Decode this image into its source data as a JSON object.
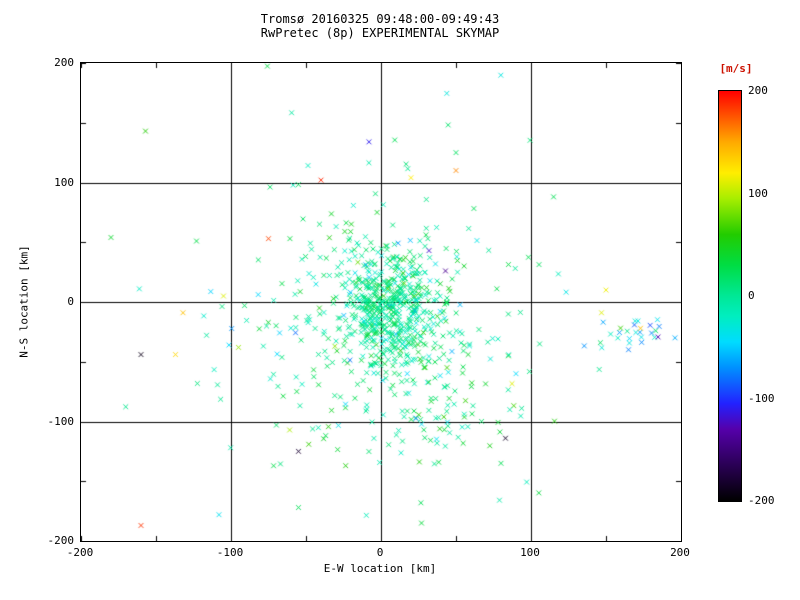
{
  "title": {
    "line1": "Tromsø 20160325 09:48:00-09:49:43",
    "line2": "RwPretec (8p) EXPERIMENTAL SKYMAP"
  },
  "axes": {
    "xlabel": "E-W location [km]",
    "ylabel": "N-S location [km]",
    "xlim": [
      -200,
      200
    ],
    "ylim": [
      -200,
      200
    ],
    "xticks": [
      "-200",
      "-100",
      "0",
      "100",
      "200"
    ],
    "yticks": [
      "200",
      "100",
      "0",
      "-100",
      "-200"
    ],
    "grid_positions": [
      -100,
      0,
      100
    ],
    "minor_tick_step": 50
  },
  "colorbar": {
    "label": "[m/s]",
    "label_color": "#cc1100",
    "min": -200,
    "max": 200,
    "ticks": [
      "200",
      "100",
      "0",
      "-100",
      "-200"
    ],
    "tick_values": [
      200,
      100,
      0,
      -100,
      -200
    ]
  },
  "colors": {
    "frame": "#000000",
    "grid": "#000000",
    "background": "#ffffff",
    "colormap_stops": [
      [
        -200,
        "#000000"
      ],
      [
        -165,
        "#2a0055"
      ],
      [
        -130,
        "#5500aa"
      ],
      [
        -105,
        "#2222ff"
      ],
      [
        -70,
        "#0090ff"
      ],
      [
        -45,
        "#00dcff"
      ],
      [
        -20,
        "#00eec0"
      ],
      [
        0,
        "#00e896"
      ],
      [
        30,
        "#00dd44"
      ],
      [
        60,
        "#22cc00"
      ],
      [
        95,
        "#a8ee00"
      ],
      [
        120,
        "#ffee00"
      ],
      [
        150,
        "#ffaa00"
      ],
      [
        175,
        "#ff5500"
      ],
      [
        200,
        "#ff0000"
      ]
    ]
  },
  "chart_data": {
    "type": "scatter",
    "title": "Tromsø 20160325 09:48:00-09:49:43 / RwPretec (8p) EXPERIMENTAL SKYMAP",
    "xlabel": "E-W location [km]",
    "ylabel": "N-S location [km]",
    "xlim": [
      -200,
      200
    ],
    "ylim": [
      -200,
      200
    ],
    "grid": "on",
    "legend": "colorbar right, Doppler velocity in m/s, range -200 to 200",
    "marker": "x",
    "marker_size_px": 5,
    "seed": 20160325,
    "clusters": [
      {
        "name": "dense-core",
        "n": 450,
        "cx": 5,
        "cy": -3,
        "sx": 15,
        "sy": 22,
        "vmean": 5,
        "vsig": 20
      },
      {
        "name": "inner-halo",
        "n": 250,
        "cx": 0,
        "cy": -15,
        "sx": 35,
        "sy": 45,
        "vmean": 5,
        "vsig": 25
      },
      {
        "name": "outer-halo",
        "n": 140,
        "cx": 0,
        "cy": -20,
        "sx": 65,
        "sy": 75,
        "vmean": 0,
        "vsig": 30
      },
      {
        "name": "south-tail",
        "n": 60,
        "cx": 30,
        "cy": -95,
        "sx": 25,
        "sy": 22,
        "vmean": 10,
        "vsig": 30
      },
      {
        "name": "east-patch",
        "n": 26,
        "cx": 170,
        "cy": -27,
        "sx": 13,
        "sy": 7,
        "vmean": -50,
        "vsig": 40
      }
    ],
    "outliers": [
      [
        -157,
        143,
        60
      ],
      [
        -40,
        102,
        190
      ],
      [
        20,
        104,
        120
      ],
      [
        -8,
        134,
        -110
      ],
      [
        50,
        110,
        160
      ],
      [
        50,
        125,
        20
      ],
      [
        -180,
        54,
        40
      ],
      [
        -123,
        51,
        30
      ],
      [
        -75,
        53,
        180
      ],
      [
        -132,
        -9,
        140
      ],
      [
        -105,
        5,
        110
      ],
      [
        -160,
        -44,
        -190
      ],
      [
        -137,
        -44,
        130
      ],
      [
        -95,
        -38,
        90
      ],
      [
        -55,
        -125,
        -180
      ],
      [
        -108,
        -178,
        -40
      ],
      [
        -160,
        -187,
        185
      ],
      [
        83,
        -114,
        -185
      ],
      [
        90,
        -60,
        -45
      ],
      [
        147,
        -9,
        110
      ],
      [
        173,
        -22,
        140
      ],
      [
        196,
        -30,
        -60
      ],
      [
        27,
        -185,
        35
      ],
      [
        -55,
        -172,
        25
      ],
      [
        80,
        -135,
        25
      ],
      [
        32,
        43,
        -120
      ],
      [
        43,
        26,
        -140
      ],
      [
        150,
        10,
        115
      ]
    ],
    "note": "clusters are statistical descriptions of the dense point cloud; outliers are individually visible points [x_km, y_km, v_mps]"
  }
}
